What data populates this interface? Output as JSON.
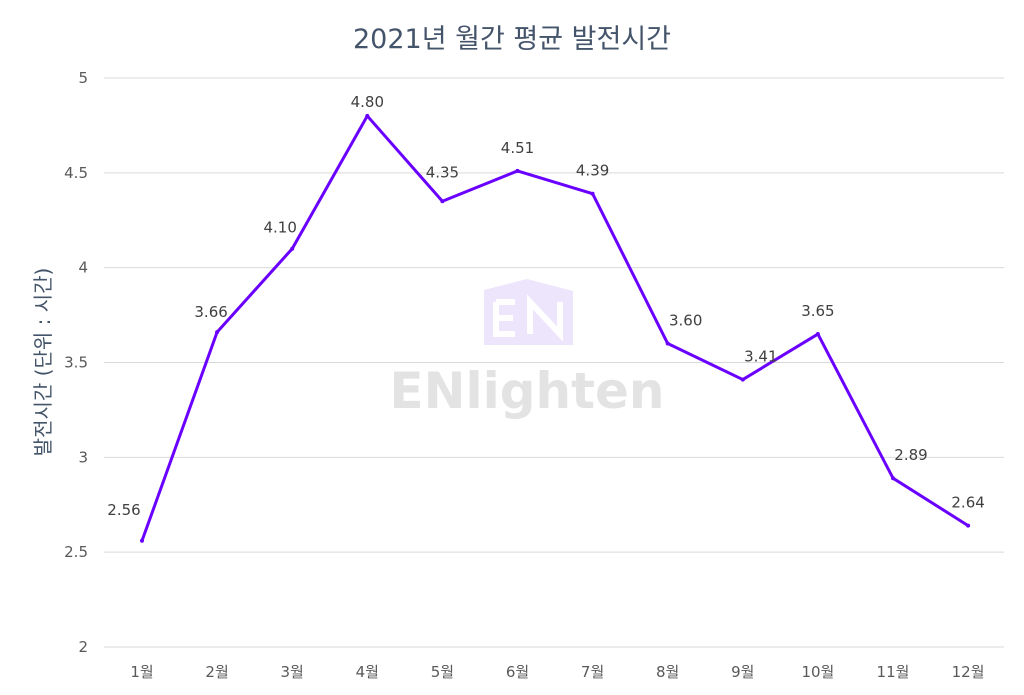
{
  "chart_data": {
    "type": "line",
    "title": "2021년 월간 평균 발전시간",
    "xlabel": "",
    "ylabel": "발전시간 (단위 : 시간)",
    "categories": [
      "1월",
      "2월",
      "3월",
      "4월",
      "5월",
      "6월",
      "7월",
      "8월",
      "9월",
      "10월",
      "11월",
      "12월"
    ],
    "series": [
      {
        "values": [
          2.56,
          3.66,
          4.1,
          4.8,
          4.35,
          4.51,
          4.39,
          3.6,
          3.41,
          3.65,
          2.89,
          2.64
        ],
        "data_labels": [
          "2.56",
          "3.66",
          "4.10",
          "4.80",
          "4.35",
          "4.51",
          "4.39",
          "3.60",
          "3.41",
          "3.65",
          "2.89",
          "2.64"
        ],
        "color": "#6a00ff"
      }
    ],
    "ylim": [
      2,
      5
    ],
    "yticks": [
      "2",
      "2.5",
      "3",
      "3.5",
      "4",
      "4.5",
      "5"
    ],
    "grid": true,
    "legend": "none"
  },
  "watermark": {
    "text": "ENlighten",
    "logo_color": "#ede5fb"
  }
}
